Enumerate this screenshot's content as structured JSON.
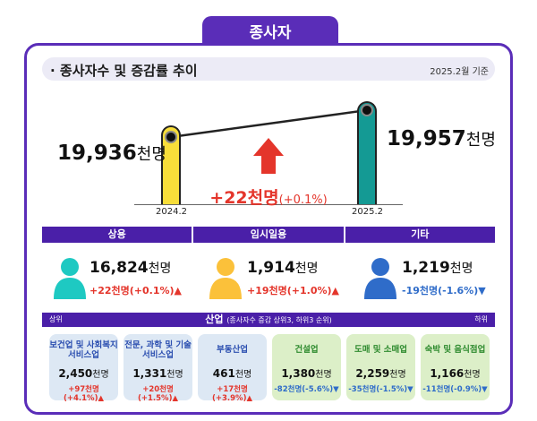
{
  "title": "종사자",
  "subtitle": "· 종사자수 및 증감률 추이",
  "base_date": "2025.2월 기준",
  "trend": {
    "left": {
      "year": "2024.2",
      "value": "19,936",
      "unit": "천명",
      "color": "#f8de3a"
    },
    "right": {
      "year": "2025.2",
      "value": "19,957",
      "unit": "천명",
      "color": "#149a94"
    },
    "change_value": "+22천명",
    "change_rate": "(+0.1%)"
  },
  "categories": [
    {
      "label": "상용",
      "value": "16,824",
      "unit": "천명",
      "change": "+22천명(+0.1%)",
      "direction": "up",
      "icon": "person-icon",
      "color": "#1ec9c2"
    },
    {
      "label": "임시일용",
      "value": "1,914",
      "unit": "천명",
      "change": "+19천명(+1.0%)",
      "direction": "up",
      "icon": "person-icon",
      "color": "#fbc13a"
    },
    {
      "label": "기타",
      "value": "1,219",
      "unit": "천명",
      "change": "-19천명(-1.6%)",
      "direction": "down",
      "icon": "person-icon",
      "color": "#2f6cc9"
    }
  ],
  "industry": {
    "title": "산업",
    "note": "(종사자수 증감 상위3, 하위3 순위)",
    "left_label": "상위",
    "right_label": "하위",
    "cards": [
      {
        "name": "보건업 및 사회복지 서비스업",
        "value": "2,450",
        "unit": "천명",
        "change": "+97천명(+4.1%)",
        "direction": "up"
      },
      {
        "name": "전문, 과학 및 기술 서비스업",
        "value": "1,331",
        "unit": "천명",
        "change": "+20천명(+1.5%)",
        "direction": "up"
      },
      {
        "name": "부동산업",
        "value": "461",
        "unit": "천명",
        "change": "+17천명(+3.9%)",
        "direction": "up"
      },
      {
        "name": "건설업",
        "value": "1,380",
        "unit": "천명",
        "change": "-82천명(-5.6%)",
        "direction": "down"
      },
      {
        "name": "도매 및 소매업",
        "value": "2,259",
        "unit": "천명",
        "change": "-35천명(-1.5%)",
        "direction": "down"
      },
      {
        "name": "숙박 및 음식점업",
        "value": "1,166",
        "unit": "천명",
        "change": "-11천명(-0.9%)",
        "direction": "down"
      }
    ]
  },
  "colors": {
    "accent": "#5a2db8",
    "up": "#e4352b",
    "down": "#2f6cc9"
  }
}
